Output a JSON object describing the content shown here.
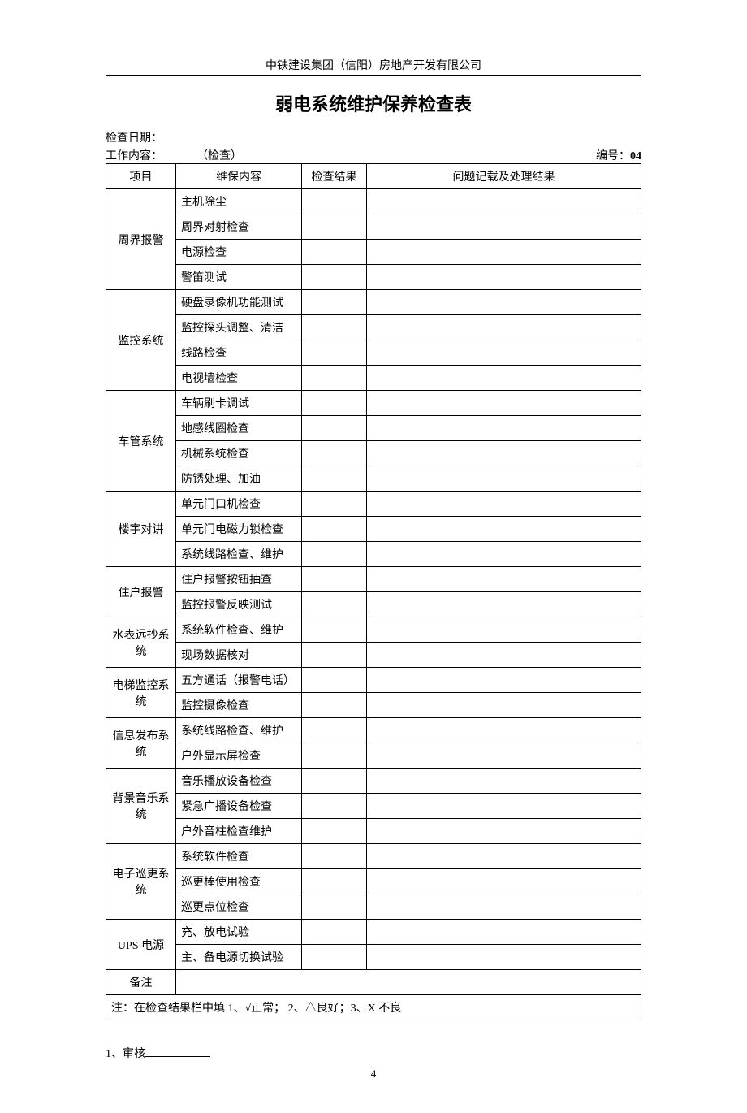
{
  "header": {
    "company_name": "中铁建设集团（信阳）房地产开发有限公司"
  },
  "page": {
    "title": "弱电系统维护保养检查表",
    "check_date_label": "检查日期：",
    "work_content_label": "工作内容：",
    "work_content_suffix": "（检查）",
    "doc_number_label": "编号：",
    "doc_number_value": "04",
    "page_number": "4"
  },
  "table": {
    "headers": {
      "project": "项目",
      "content": "维保内容",
      "result": "检查结果",
      "record": "问题记载及处理结果"
    },
    "sections": [
      {
        "project": "周界报警",
        "rows": [
          "主机除尘",
          "周界对射检查",
          "电源检查",
          "警笛测试"
        ]
      },
      {
        "project": "监控系统",
        "rows": [
          "硬盘录像机功能测试",
          "监控探头调整、清洁",
          "线路检查",
          "电视墙检查"
        ]
      },
      {
        "project": "车管系统",
        "rows": [
          "车辆刷卡调试",
          "地感线圈检查",
          "机械系统检查",
          "防锈处理、加油"
        ]
      },
      {
        "project": "楼宇对讲",
        "rows": [
          "单元门口机检查",
          "单元门电磁力锁检查",
          "系统线路检查、维护"
        ]
      },
      {
        "project": "住户报警",
        "rows": [
          "住户报警按钮抽查",
          "监控报警反映测试"
        ]
      },
      {
        "project": "水表远抄系统",
        "rows": [
          "系统软件检查、维护",
          "现场数据核对"
        ]
      },
      {
        "project": "电梯监控系统",
        "rows": [
          "五方通话（报警电话）",
          "监控摄像检查"
        ]
      },
      {
        "project": "信息发布系统",
        "rows": [
          "系统线路检查、维护",
          "户外显示屏检查"
        ]
      },
      {
        "project": "背景音乐系统",
        "rows": [
          "音乐播放设备检查",
          "紧急广播设备检查",
          "户外音柱检查维护"
        ]
      },
      {
        "project": "电子巡更系统",
        "rows": [
          "系统软件检查",
          "巡更棒使用检查",
          "巡更点位检查"
        ]
      },
      {
        "project": "UPS 电源",
        "rows": [
          "充、放电试验",
          "主、备电源切换试验"
        ]
      }
    ],
    "remark_label": "备注",
    "remark_value": "",
    "note": "注：在检查结果栏中填 1、√正常； 2、△良好；3、X 不良"
  },
  "footer": {
    "sign_label": "1、审核"
  },
  "style": {
    "background_color": "#ffffff",
    "text_color": "#000000",
    "border_color": "#000000",
    "title_fontsize": 22,
    "body_fontsize": 14,
    "font_family": "SimSun"
  }
}
